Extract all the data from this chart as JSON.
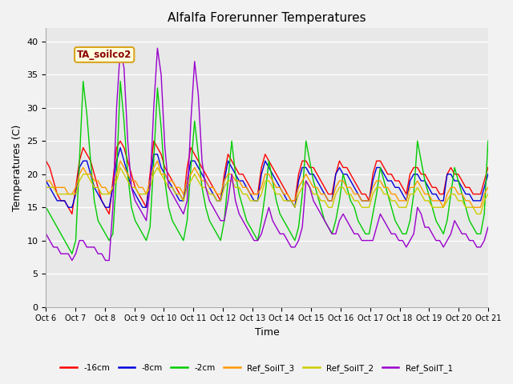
{
  "title": "Alfalfa Forerunner Temperatures",
  "xlabel": "Time",
  "ylabel": "Temperatures (C)",
  "annotation": "TA_soilco2",
  "ylim": [
    0,
    42
  ],
  "yticks": [
    0,
    5,
    10,
    15,
    20,
    25,
    30,
    35,
    40
  ],
  "xtick_labels": [
    "Oct 6",
    "Oct 7",
    "Oct 8",
    "Oct 9",
    "Oct 10",
    "Oct 11",
    "Oct 12",
    "Oct 13",
    "Oct 14",
    "Oct 15",
    "Oct 16",
    "Oct 17",
    "Oct 18",
    "Oct 19",
    "Oct 20",
    "Oct 21"
  ],
  "legend_entries": [
    "-16cm",
    "-8cm",
    "-2cm",
    "Ref_SoilT_3",
    "Ref_SoilT_2",
    "Ref_SoilT_1"
  ],
  "line_colors": [
    "#ff0000",
    "#0000dd",
    "#00cc00",
    "#ff9900",
    "#cccc00",
    "#9900cc"
  ],
  "series": {
    "m16cm": [
      22,
      21,
      19,
      17,
      16,
      16,
      15,
      14,
      18,
      22,
      24,
      23,
      22,
      20,
      18,
      16,
      15,
      14,
      19,
      24,
      25,
      24,
      22,
      20,
      18,
      17,
      16,
      15,
      20,
      25,
      24,
      23,
      21,
      20,
      19,
      18,
      17,
      16,
      21,
      24,
      23,
      22,
      21,
      20,
      19,
      18,
      17,
      16,
      20,
      23,
      22,
      21,
      20,
      20,
      19,
      18,
      17,
      17,
      21,
      23,
      22,
      21,
      20,
      19,
      18,
      17,
      16,
      16,
      20,
      22,
      22,
      21,
      21,
      20,
      19,
      18,
      17,
      17,
      20,
      22,
      21,
      21,
      20,
      19,
      18,
      17,
      17,
      16,
      20,
      22,
      22,
      21,
      20,
      20,
      19,
      19,
      18,
      17,
      20,
      21,
      21,
      20,
      20,
      19,
      18,
      18,
      17,
      17,
      20,
      21,
      20,
      20,
      19,
      18,
      18,
      17,
      17,
      17,
      19,
      21
    ],
    "m8cm": [
      19,
      18,
      17,
      16,
      16,
      16,
      15,
      15,
      17,
      21,
      22,
      22,
      20,
      18,
      17,
      16,
      15,
      15,
      18,
      22,
      24,
      22,
      20,
      18,
      17,
      16,
      15,
      15,
      19,
      23,
      23,
      21,
      20,
      19,
      18,
      17,
      16,
      16,
      19,
      22,
      22,
      21,
      20,
      19,
      18,
      17,
      16,
      16,
      19,
      22,
      21,
      20,
      19,
      19,
      18,
      17,
      16,
      16,
      20,
      22,
      21,
      20,
      19,
      18,
      17,
      16,
      16,
      15,
      19,
      21,
      21,
      20,
      20,
      19,
      18,
      17,
      16,
      16,
      20,
      21,
      20,
      20,
      19,
      18,
      17,
      16,
      16,
      16,
      19,
      21,
      21,
      20,
      19,
      19,
      18,
      18,
      17,
      16,
      19,
      20,
      20,
      19,
      19,
      18,
      17,
      17,
      16,
      16,
      20,
      20,
      19,
      19,
      18,
      17,
      17,
      16,
      16,
      16,
      18,
      20
    ],
    "m2cm": [
      15,
      14,
      13,
      12,
      11,
      10,
      9,
      8,
      10,
      22,
      34,
      29,
      22,
      16,
      13,
      12,
      11,
      10,
      11,
      20,
      34,
      28,
      20,
      15,
      13,
      12,
      11,
      10,
      12,
      22,
      33,
      27,
      19,
      15,
      13,
      12,
      11,
      10,
      13,
      21,
      28,
      23,
      18,
      15,
      13,
      12,
      11,
      10,
      13,
      19,
      25,
      20,
      17,
      15,
      13,
      12,
      11,
      10,
      13,
      17,
      22,
      19,
      16,
      14,
      13,
      12,
      11,
      10,
      12,
      17,
      25,
      22,
      19,
      17,
      15,
      13,
      12,
      11,
      13,
      16,
      20,
      18,
      16,
      15,
      13,
      12,
      11,
      11,
      14,
      17,
      21,
      19,
      17,
      15,
      13,
      12,
      11,
      11,
      13,
      17,
      25,
      22,
      19,
      17,
      15,
      13,
      12,
      11,
      13,
      17,
      21,
      19,
      17,
      15,
      13,
      12,
      11,
      11,
      14,
      25
    ],
    "ref3": [
      19,
      19,
      18,
      18,
      18,
      18,
      17,
      17,
      18,
      20,
      21,
      20,
      20,
      19,
      19,
      18,
      18,
      17,
      18,
      20,
      22,
      21,
      20,
      19,
      19,
      18,
      18,
      17,
      19,
      21,
      22,
      20,
      20,
      19,
      19,
      18,
      18,
      17,
      19,
      20,
      21,
      20,
      19,
      19,
      18,
      18,
      17,
      17,
      19,
      20,
      20,
      19,
      19,
      18,
      18,
      17,
      17,
      17,
      18,
      20,
      20,
      19,
      18,
      18,
      17,
      17,
      16,
      16,
      18,
      19,
      20,
      19,
      18,
      18,
      17,
      17,
      16,
      16,
      18,
      19,
      19,
      18,
      18,
      17,
      17,
      16,
      16,
      16,
      18,
      19,
      19,
      18,
      18,
      17,
      17,
      16,
      16,
      16,
      18,
      18,
      19,
      18,
      17,
      17,
      16,
      16,
      16,
      15,
      17,
      18,
      18,
      17,
      17,
      16,
      16,
      15,
      15,
      15,
      17,
      18
    ],
    "ref2": [
      18,
      18,
      18,
      17,
      17,
      17,
      17,
      17,
      17,
      19,
      20,
      20,
      19,
      18,
      18,
      17,
      17,
      17,
      18,
      19,
      21,
      20,
      19,
      18,
      18,
      17,
      17,
      17,
      18,
      20,
      21,
      20,
      19,
      18,
      18,
      17,
      17,
      16,
      18,
      19,
      20,
      19,
      18,
      18,
      17,
      17,
      16,
      16,
      18,
      19,
      19,
      18,
      18,
      17,
      17,
      16,
      16,
      16,
      17,
      19,
      19,
      18,
      17,
      17,
      16,
      16,
      16,
      15,
      17,
      18,
      19,
      18,
      17,
      17,
      16,
      16,
      15,
      15,
      17,
      18,
      18,
      17,
      17,
      16,
      16,
      15,
      15,
      15,
      17,
      18,
      18,
      17,
      17,
      16,
      16,
      15,
      15,
      15,
      17,
      17,
      18,
      17,
      16,
      16,
      15,
      15,
      15,
      15,
      16,
      17,
      17,
      16,
      16,
      15,
      15,
      15,
      14,
      14,
      16,
      17
    ],
    "ref1": [
      11,
      10,
      9,
      9,
      8,
      8,
      8,
      7,
      8,
      10,
      10,
      9,
      9,
      9,
      8,
      8,
      7,
      7,
      15,
      30,
      39,
      36,
      25,
      18,
      16,
      15,
      14,
      13,
      18,
      30,
      39,
      35,
      24,
      18,
      17,
      16,
      15,
      14,
      16,
      28,
      37,
      32,
      22,
      18,
      16,
      15,
      14,
      13,
      13,
      16,
      20,
      16,
      14,
      13,
      12,
      11,
      10,
      10,
      11,
      13,
      15,
      13,
      12,
      11,
      11,
      10,
      9,
      9,
      10,
      12,
      19,
      18,
      16,
      15,
      14,
      13,
      12,
      11,
      11,
      13,
      14,
      13,
      12,
      11,
      11,
      10,
      10,
      10,
      10,
      12,
      14,
      13,
      12,
      11,
      11,
      10,
      10,
      9,
      10,
      11,
      15,
      14,
      12,
      12,
      11,
      10,
      10,
      9,
      10,
      11,
      13,
      12,
      11,
      11,
      10,
      10,
      9,
      9,
      10,
      12
    ]
  }
}
